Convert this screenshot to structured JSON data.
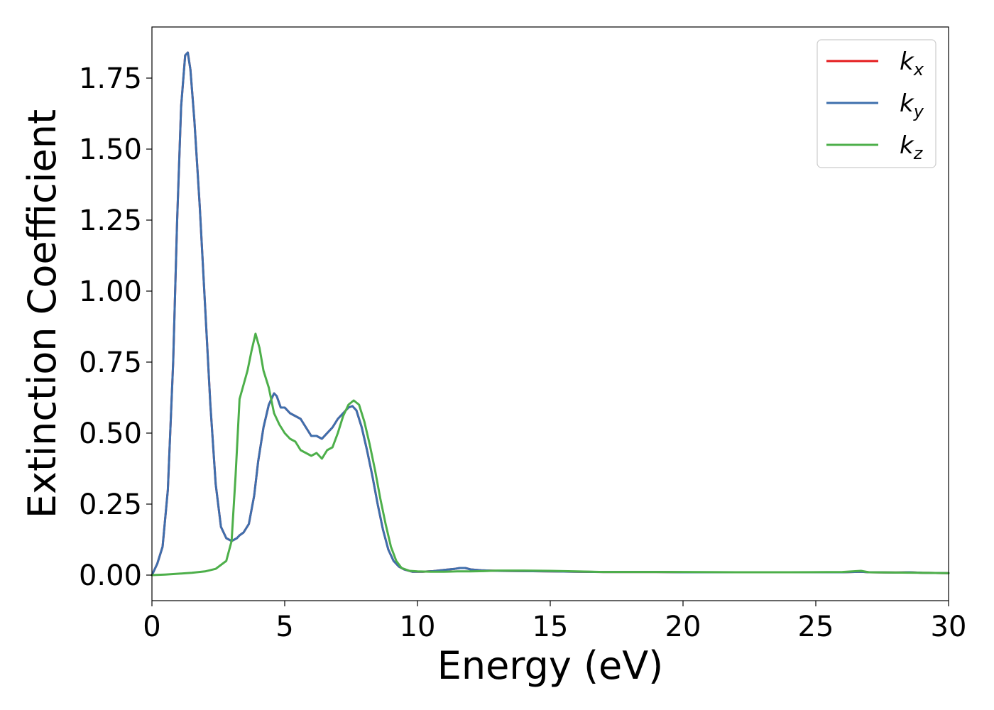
{
  "chart_data": {
    "type": "line",
    "xlabel": "Energy (eV)",
    "ylabel": "Extinction Coefficient",
    "xlim": [
      0,
      30
    ],
    "ylim": [
      -0.09,
      1.93
    ],
    "xticks": [
      0,
      5,
      10,
      15,
      20,
      25,
      30
    ],
    "yticks": [
      0.0,
      0.25,
      0.5,
      0.75,
      1.0,
      1.25,
      1.5,
      1.75
    ],
    "ytick_labels": [
      "0.00",
      "0.25",
      "0.50",
      "0.75",
      "1.00",
      "1.25",
      "1.50",
      "1.75"
    ],
    "xtick_labels": [
      "0",
      "5",
      "10",
      "15",
      "20",
      "25",
      "30"
    ],
    "grid": false,
    "legend_position": "top-right",
    "series": [
      {
        "name": "k",
        "subscript": "x",
        "color": "#e41a1c",
        "x": [
          0,
          0.2,
          0.4,
          0.6,
          0.8,
          0.95,
          1.1,
          1.25,
          1.35,
          1.45,
          1.6,
          1.8,
          2.0,
          2.2,
          2.4,
          2.6,
          2.8,
          3.0,
          3.2,
          3.3,
          3.45,
          3.65,
          3.85,
          4.0,
          4.2,
          4.4,
          4.6,
          4.7,
          4.85,
          5.0,
          5.2,
          5.4,
          5.6,
          5.8,
          6.0,
          6.2,
          6.4,
          6.6,
          6.8,
          7.0,
          7.2,
          7.4,
          7.55,
          7.7,
          7.9,
          8.1,
          8.3,
          8.5,
          8.7,
          8.9,
          9.1,
          9.3,
          9.5,
          9.8,
          10.2,
          10.6,
          11.0,
          11.4,
          11.6,
          11.8,
          12.0,
          12.4,
          13.0,
          14.0,
          15.0,
          16.0,
          17.0,
          18.0,
          19.0,
          20.0,
          21.0,
          22.0,
          23.0,
          24.0,
          25.0,
          26.0,
          26.7,
          27.0,
          28.0,
          28.5,
          29.0,
          30.0
        ],
        "y": [
          0.0,
          0.04,
          0.1,
          0.3,
          0.75,
          1.25,
          1.65,
          1.83,
          1.84,
          1.78,
          1.6,
          1.3,
          0.95,
          0.6,
          0.32,
          0.17,
          0.13,
          0.12,
          0.13,
          0.14,
          0.15,
          0.18,
          0.28,
          0.4,
          0.52,
          0.6,
          0.64,
          0.63,
          0.59,
          0.59,
          0.57,
          0.56,
          0.55,
          0.52,
          0.49,
          0.49,
          0.48,
          0.5,
          0.52,
          0.55,
          0.57,
          0.59,
          0.595,
          0.58,
          0.52,
          0.44,
          0.35,
          0.25,
          0.16,
          0.09,
          0.05,
          0.03,
          0.02,
          0.012,
          0.012,
          0.014,
          0.018,
          0.022,
          0.025,
          0.025,
          0.02,
          0.017,
          0.015,
          0.014,
          0.013,
          0.012,
          0.011,
          0.011,
          0.011,
          0.01,
          0.01,
          0.01,
          0.01,
          0.01,
          0.01,
          0.01,
          0.012,
          0.01,
          0.009,
          0.01,
          0.008,
          0.007
        ]
      },
      {
        "name": "k",
        "subscript": "y",
        "color": "#3e6fad",
        "x": [
          0,
          0.2,
          0.4,
          0.6,
          0.8,
          0.95,
          1.1,
          1.25,
          1.35,
          1.45,
          1.6,
          1.8,
          2.0,
          2.2,
          2.4,
          2.6,
          2.8,
          3.0,
          3.2,
          3.3,
          3.45,
          3.65,
          3.85,
          4.0,
          4.2,
          4.4,
          4.6,
          4.7,
          4.85,
          5.0,
          5.2,
          5.4,
          5.6,
          5.8,
          6.0,
          6.2,
          6.4,
          6.6,
          6.8,
          7.0,
          7.2,
          7.4,
          7.55,
          7.7,
          7.9,
          8.1,
          8.3,
          8.5,
          8.7,
          8.9,
          9.1,
          9.3,
          9.5,
          9.8,
          10.2,
          10.6,
          11.0,
          11.4,
          11.6,
          11.8,
          12.0,
          12.4,
          13.0,
          14.0,
          15.0,
          16.0,
          17.0,
          18.0,
          19.0,
          20.0,
          21.0,
          22.0,
          23.0,
          24.0,
          25.0,
          26.0,
          26.7,
          27.0,
          28.0,
          28.5,
          29.0,
          30.0
        ],
        "y": [
          0.0,
          0.04,
          0.1,
          0.3,
          0.75,
          1.25,
          1.65,
          1.83,
          1.84,
          1.78,
          1.6,
          1.3,
          0.95,
          0.6,
          0.32,
          0.17,
          0.13,
          0.12,
          0.13,
          0.14,
          0.15,
          0.18,
          0.28,
          0.4,
          0.52,
          0.6,
          0.64,
          0.63,
          0.59,
          0.59,
          0.57,
          0.56,
          0.55,
          0.52,
          0.49,
          0.49,
          0.48,
          0.5,
          0.52,
          0.55,
          0.57,
          0.59,
          0.595,
          0.58,
          0.52,
          0.44,
          0.35,
          0.25,
          0.16,
          0.09,
          0.05,
          0.03,
          0.02,
          0.012,
          0.012,
          0.014,
          0.018,
          0.022,
          0.025,
          0.025,
          0.02,
          0.017,
          0.015,
          0.014,
          0.013,
          0.012,
          0.011,
          0.011,
          0.011,
          0.01,
          0.01,
          0.01,
          0.01,
          0.01,
          0.01,
          0.01,
          0.012,
          0.01,
          0.009,
          0.01,
          0.008,
          0.007
        ]
      },
      {
        "name": "k",
        "subscript": "z",
        "color": "#4daf4a",
        "x": [
          0,
          0.5,
          1.0,
          1.5,
          2.0,
          2.4,
          2.8,
          3.0,
          3.15,
          3.3,
          3.45,
          3.6,
          3.75,
          3.9,
          4.05,
          4.2,
          4.4,
          4.6,
          4.8,
          5.0,
          5.2,
          5.4,
          5.6,
          5.8,
          6.0,
          6.2,
          6.4,
          6.6,
          6.8,
          7.0,
          7.2,
          7.4,
          7.6,
          7.8,
          8.0,
          8.2,
          8.4,
          8.6,
          8.8,
          9.0,
          9.2,
          9.4,
          9.7,
          10.0,
          10.5,
          11.0,
          11.5,
          12.0,
          12.5,
          13.0,
          14.0,
          15.0,
          16.0,
          17.0,
          18.0,
          19.0,
          20.0,
          22.0,
          24.0,
          26.0,
          26.7,
          27.0,
          28.0,
          29.0,
          30.0
        ],
        "y": [
          0.0,
          0.002,
          0.005,
          0.008,
          0.013,
          0.022,
          0.05,
          0.12,
          0.35,
          0.62,
          0.67,
          0.72,
          0.79,
          0.85,
          0.8,
          0.72,
          0.66,
          0.57,
          0.53,
          0.5,
          0.48,
          0.47,
          0.44,
          0.43,
          0.42,
          0.43,
          0.41,
          0.44,
          0.45,
          0.5,
          0.56,
          0.6,
          0.615,
          0.6,
          0.54,
          0.46,
          0.37,
          0.27,
          0.18,
          0.1,
          0.05,
          0.025,
          0.015,
          0.013,
          0.012,
          0.012,
          0.013,
          0.013,
          0.014,
          0.016,
          0.016,
          0.015,
          0.013,
          0.011,
          0.011,
          0.011,
          0.011,
          0.01,
          0.01,
          0.011,
          0.015,
          0.01,
          0.009,
          0.008,
          0.007
        ]
      }
    ]
  }
}
